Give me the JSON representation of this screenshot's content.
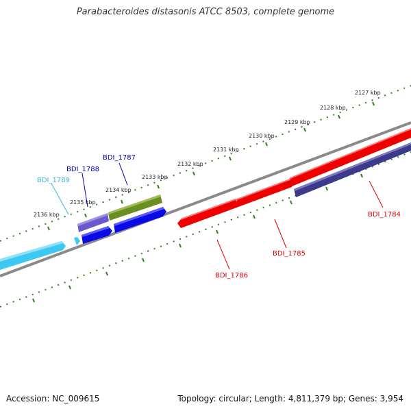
{
  "title": "Parabacteroides distasonis ATCC 8503, complete genome",
  "footer": {
    "accession": "Accession: NC_009615",
    "summary": "Topology: circular; Length: 4,811,379 bp; Genes: 3,954"
  },
  "colors": {
    "backbone": "#8a8a8a",
    "tick": "#2e7d1e",
    "forward_red": "#ee0000",
    "reverse_red": "#ee0000",
    "blue": "#0a0ae6",
    "slate_blue": "#5a4fc8",
    "olive": "#6b8e23",
    "light_blue": "#3cc8f0",
    "dark_slate": "#3c3a8a"
  },
  "ruler": {
    "unit": "kbp",
    "labels": [
      "2127 kbp",
      "2128 kbp",
      "2129 kbp",
      "2130 kbp",
      "2131 kbp",
      "2132 kbp",
      "2133 kbp",
      "2134 kbp",
      "2135 kbp",
      "2136 kbp"
    ]
  },
  "genes": [
    {
      "label": "BDI_1784",
      "color": "#dd0000",
      "strand": "reverse",
      "fill": "#3c3a8a"
    },
    {
      "label": "BDI_1785",
      "color": "#dd0000",
      "strand": "forward",
      "fill": "#ee0000"
    },
    {
      "label": "BDI_1786",
      "color": "#dd0000",
      "strand": "forward",
      "fill": "#ee0000"
    },
    {
      "label": "BDI_1787",
      "color": "#0000aa",
      "strand": "forward",
      "fill": "#0a0ae6"
    },
    {
      "label": "BDI_1788",
      "color": "#0000aa",
      "strand": "forward",
      "fill": "#0a0ae6"
    },
    {
      "label": "BDI_1789",
      "color": "#33bbdd",
      "strand": "forward",
      "fill": "#3cc8f0"
    }
  ]
}
